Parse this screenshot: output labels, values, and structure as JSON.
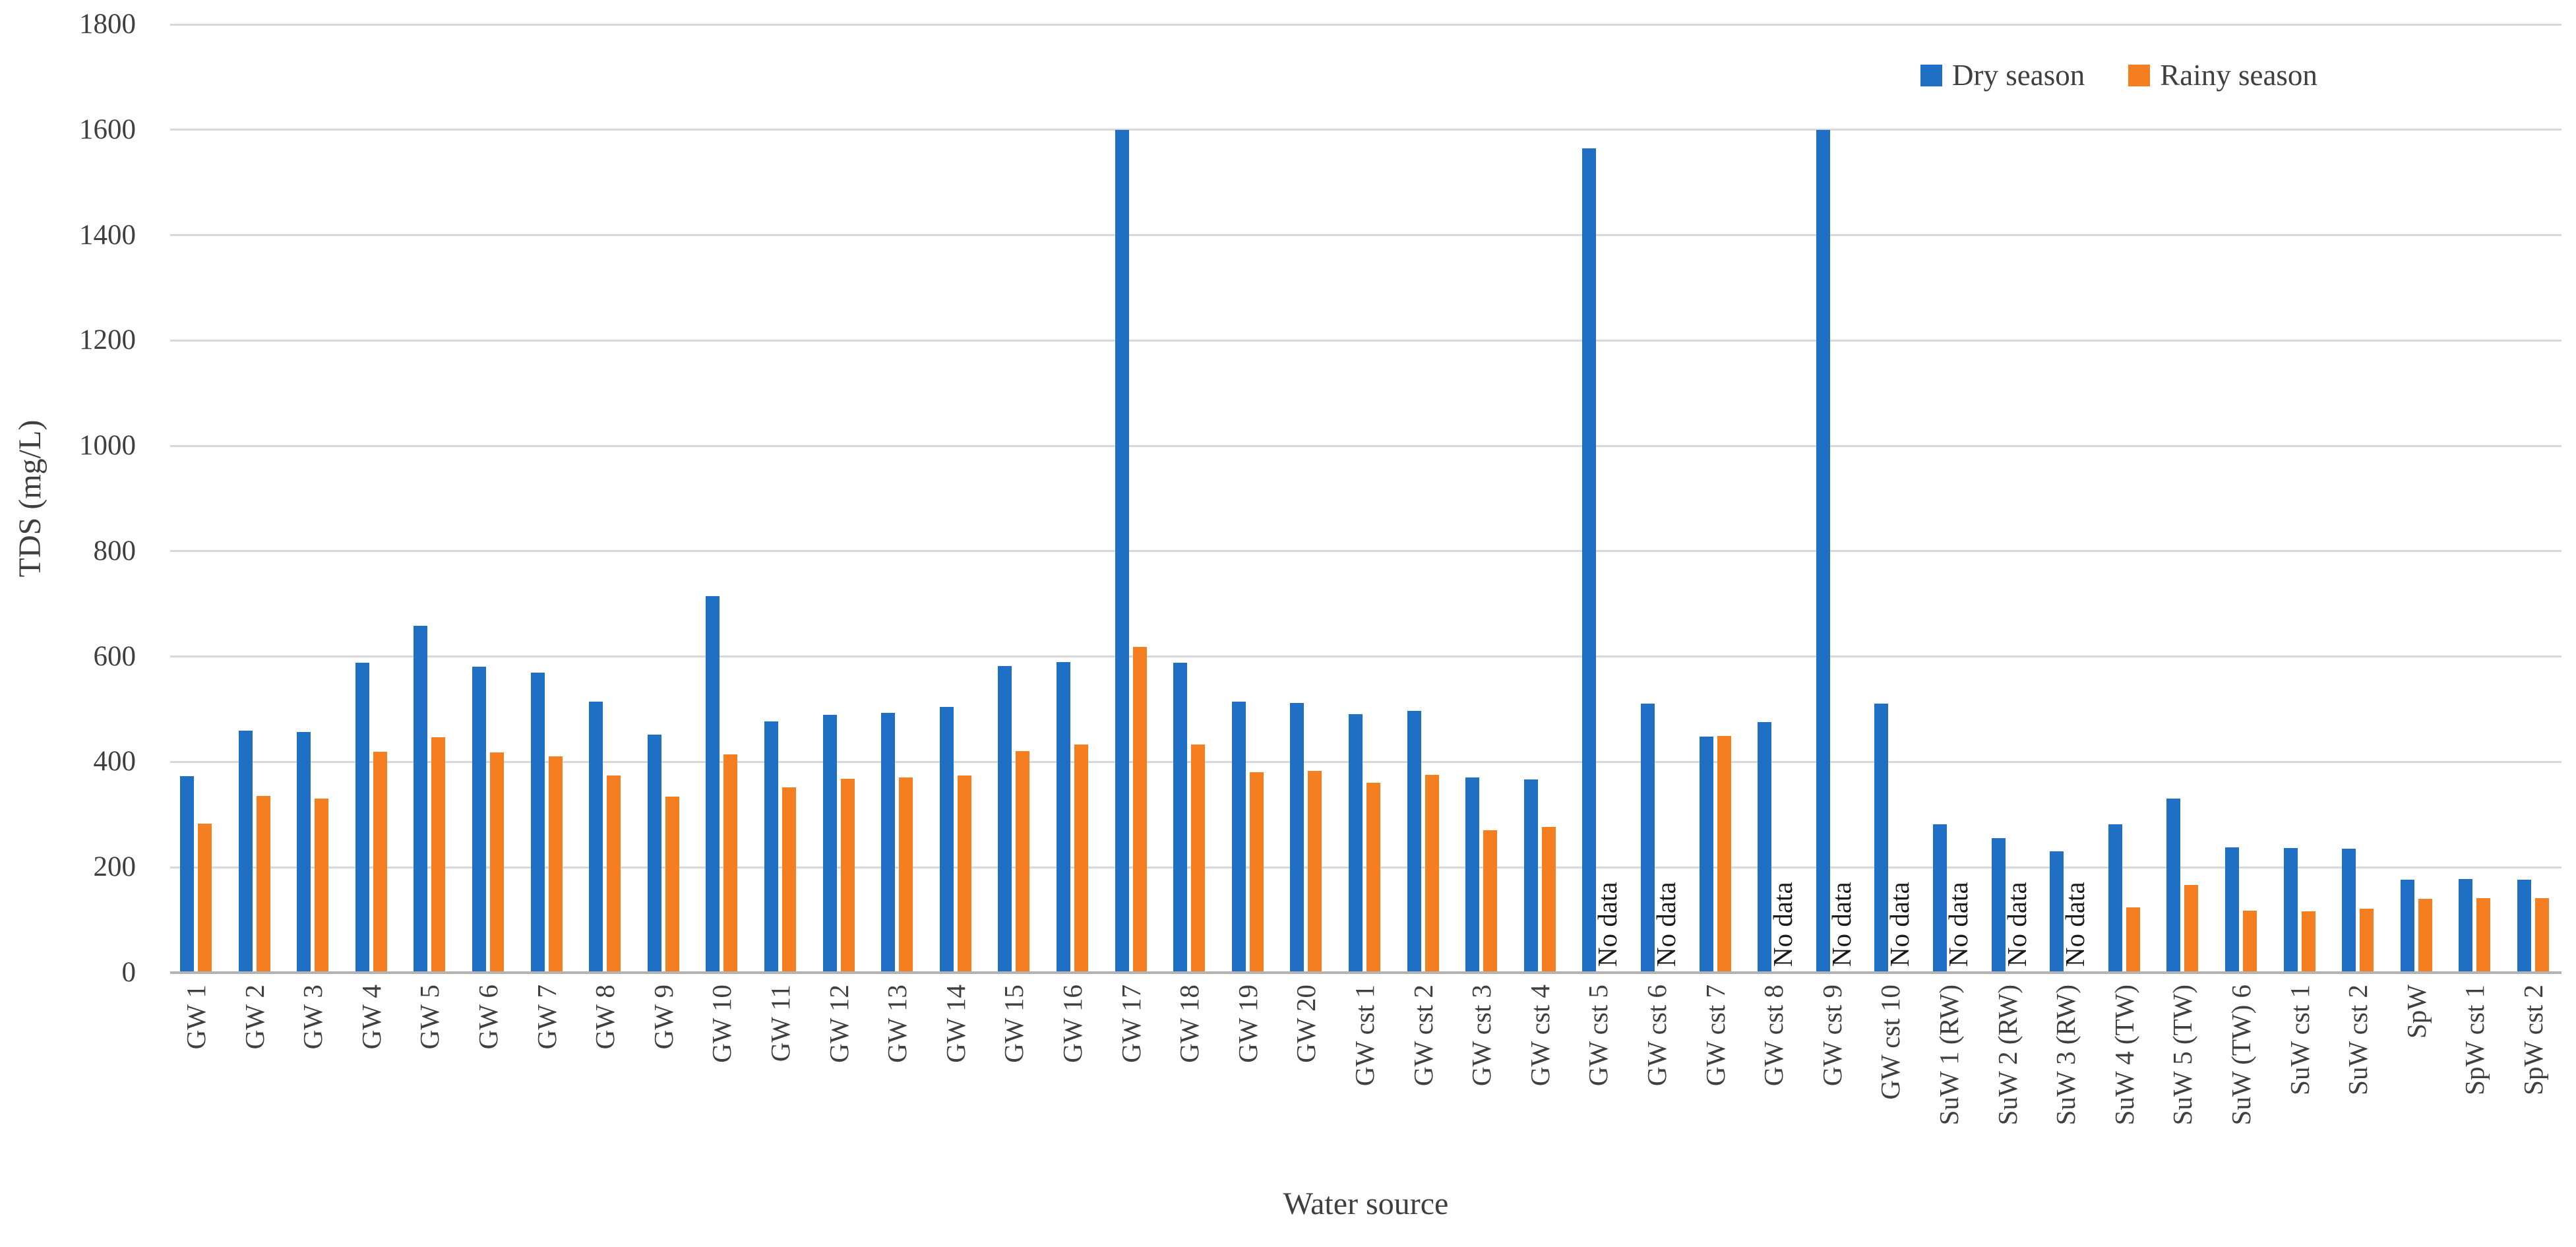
{
  "chart_data": {
    "type": "bar",
    "title": "",
    "xlabel": "Water source",
    "ylabel": "TDS (mg/L)",
    "ylim": [
      0,
      1800
    ],
    "y_tick_step": 200,
    "y_ticks": [
      0,
      200,
      400,
      600,
      800,
      1000,
      1200,
      1400,
      1600,
      1800
    ],
    "grid": "horizontal",
    "legend_position": "top-right",
    "no_data_label": "No data",
    "categories": [
      "GW 1",
      "GW 2",
      "GW 3",
      "GW 4",
      "GW 5",
      "GW 6",
      "GW 7",
      "GW 8",
      "GW 9",
      "GW 10",
      "GW 11",
      "GW 12",
      "GW 13",
      "GW 14",
      "GW 15",
      "GW 16",
      "GW 17",
      "GW 18",
      "GW 19",
      "GW 20",
      "GW cst 1",
      "GW cst 2",
      "GW cst 3",
      "GW cst 4",
      "GW cst 5",
      "GW cst 6",
      "GW cst 7",
      "GW cst 8",
      "GW cst 9",
      "GW cst 10",
      "SuW 1 (RW)",
      "SuW 2 (RW)",
      "SuW 3 (RW)",
      "SuW 4 (TW)",
      "SuW 5 (TW)",
      "SuW (TW) 6",
      "SuW cst 1",
      "SuW cst 2",
      "SpW",
      "SpW cst 1",
      "SpW cst 2"
    ],
    "series": [
      {
        "name": "Dry season",
        "color": "#1F70C4",
        "values": [
          373,
          460,
          457,
          588,
          659,
          581,
          570,
          514,
          452,
          715,
          477,
          489,
          493,
          505,
          582,
          589,
          1600,
          588,
          514,
          512,
          491,
          497,
          371,
          367,
          1565,
          511,
          448,
          476,
          1600,
          511,
          282,
          255,
          230,
          282,
          331,
          238,
          236,
          235,
          177,
          178,
          177
        ]
      },
      {
        "name": "Rainy season",
        "color": "#F57E20",
        "values": [
          283,
          336,
          330,
          419,
          447,
          418,
          411,
          374,
          334,
          414,
          352,
          368,
          370,
          374,
          420,
          433,
          618,
          433,
          380,
          383,
          361,
          376,
          270,
          277,
          null,
          null,
          450,
          null,
          null,
          null,
          null,
          null,
          null,
          124,
          167,
          118,
          117,
          121,
          140,
          142,
          141
        ]
      }
    ],
    "colors": {
      "gridline": "#D9D9D9",
      "axis_line": "#B3B3B3",
      "text": "#3F3F3F",
      "no_data_text": "#1A1A1A"
    }
  }
}
